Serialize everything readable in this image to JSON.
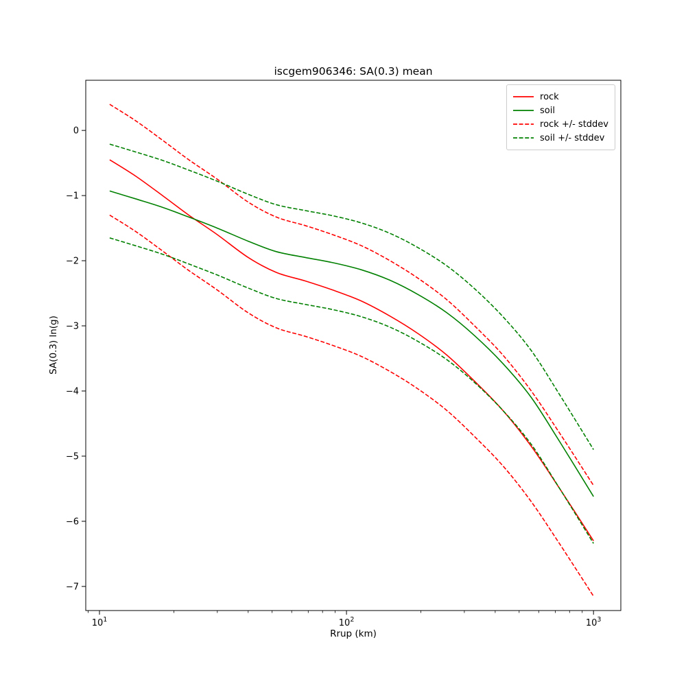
{
  "chart_data": {
    "type": "line",
    "title": "iscgem906346: SA(0.3) mean",
    "xlabel": "Rrup (km)",
    "ylabel": "SA(0.3) ln(g)",
    "x_scale": "log",
    "xlim": [
      8.8,
      1290
    ],
    "ylim": [
      -7.37,
      0.77
    ],
    "x_ticks": [
      10,
      100,
      1000
    ],
    "y_ticks": [
      0,
      -1,
      -2,
      -3,
      -4,
      -5,
      -6,
      -7
    ],
    "grid": false,
    "legend_position": "upper right",
    "x": [
      11,
      14,
      18,
      23,
      30,
      40,
      52,
      68,
      88,
      115,
      150,
      195,
      255,
      330,
      430,
      560,
      730,
      1000
    ],
    "series": [
      {
        "name": "rock",
        "color": "#ff0000",
        "style": "solid",
        "values": [
          -0.45,
          -0.7,
          -1.0,
          -1.3,
          -1.6,
          -1.95,
          -2.18,
          -2.31,
          -2.45,
          -2.62,
          -2.85,
          -3.12,
          -3.45,
          -3.85,
          -4.3,
          -4.85,
          -5.5,
          -6.3
        ]
      },
      {
        "name": "soil",
        "color": "#008000",
        "style": "solid",
        "values": [
          -0.93,
          -1.05,
          -1.18,
          -1.33,
          -1.5,
          -1.7,
          -1.86,
          -1.95,
          -2.03,
          -2.14,
          -2.3,
          -2.52,
          -2.8,
          -3.15,
          -3.58,
          -4.1,
          -4.78,
          -5.62
        ]
      },
      {
        "name": "rock + stddev",
        "color": "#ff0000",
        "style": "dashed",
        "values": [
          0.4,
          0.15,
          -0.15,
          -0.45,
          -0.75,
          -1.1,
          -1.33,
          -1.46,
          -1.6,
          -1.77,
          -2.0,
          -2.27,
          -2.6,
          -3.0,
          -3.45,
          -4.0,
          -4.65,
          -5.45
        ]
      },
      {
        "name": "rock - stddev",
        "color": "#ff0000",
        "style": "dashed",
        "values": [
          -1.3,
          -1.55,
          -1.85,
          -2.15,
          -2.45,
          -2.8,
          -3.03,
          -3.16,
          -3.3,
          -3.47,
          -3.7,
          -3.97,
          -4.3,
          -4.7,
          -5.15,
          -5.7,
          -6.35,
          -7.15
        ]
      },
      {
        "name": "soil + stddev",
        "color": "#008000",
        "style": "dashed",
        "values": [
          -0.21,
          -0.33,
          -0.46,
          -0.61,
          -0.78,
          -0.98,
          -1.14,
          -1.23,
          -1.31,
          -1.42,
          -1.58,
          -1.8,
          -2.08,
          -2.43,
          -2.86,
          -3.38,
          -4.06,
          -4.9
        ]
      },
      {
        "name": "soil - stddev",
        "color": "#008000",
        "style": "dashed",
        "values": [
          -1.65,
          -1.77,
          -1.9,
          -2.05,
          -2.22,
          -2.42,
          -2.58,
          -2.67,
          -2.75,
          -2.86,
          -3.02,
          -3.24,
          -3.52,
          -3.87,
          -4.3,
          -4.82,
          -5.5,
          -6.34
        ]
      }
    ],
    "legend": [
      {
        "label": "rock",
        "color": "#ff0000",
        "style": "solid"
      },
      {
        "label": "soil",
        "color": "#008000",
        "style": "solid"
      },
      {
        "label": "rock +/- stddev",
        "color": "#ff0000",
        "style": "dashed"
      },
      {
        "label": "soil +/- stddev",
        "color": "#008000",
        "style": "dashed"
      }
    ]
  }
}
